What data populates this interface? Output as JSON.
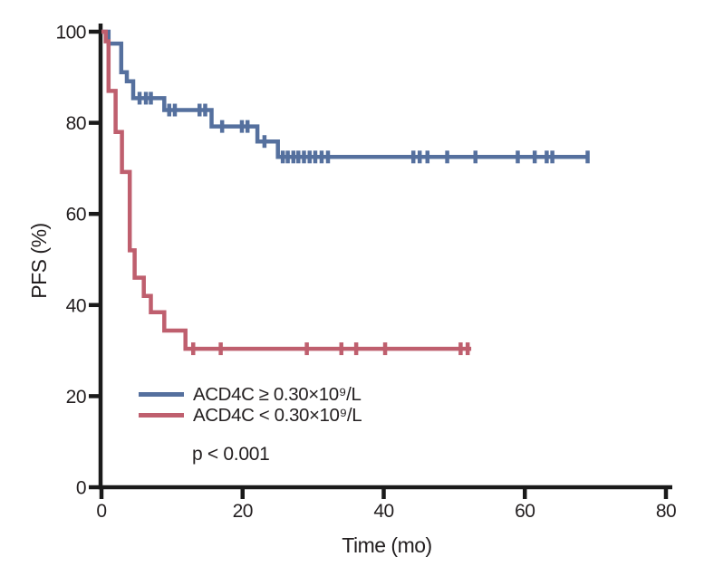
{
  "figure": {
    "background": "#ffffff",
    "text_color": "#231f20",
    "axis_color": "#1a1a1a"
  },
  "chart_data": {
    "type": "line",
    "subtype": "kaplan_meier_step",
    "title": "",
    "xlabel": "Time (mo)",
    "ylabel": "PFS (%)",
    "xlim": [
      0,
      80
    ],
    "ylim": [
      0,
      100
    ],
    "xticks": [
      0,
      20,
      40,
      60,
      80
    ],
    "yticks": [
      0,
      20,
      40,
      60,
      80,
      100
    ],
    "grid": false,
    "legend_position": "inside-lower-left",
    "annotation": "p < 0.001",
    "series": [
      {
        "name": "ACD4C ≥ 0.30×10⁹/L",
        "color": "#55709e",
        "steps": [
          [
            0,
            100
          ],
          [
            1.0,
            97.4
          ],
          [
            2.8,
            91.1
          ],
          [
            3.6,
            89.1
          ],
          [
            4.5,
            85.4
          ],
          [
            8.9,
            82.8
          ],
          [
            15.6,
            79.2
          ],
          [
            22.1,
            75.9
          ],
          [
            25.0,
            72.5
          ]
        ],
        "end_time": 69.1,
        "censors": [
          [
            5.4,
            85.4
          ],
          [
            6.3,
            85.4
          ],
          [
            7.0,
            85.4
          ],
          [
            9.6,
            82.8
          ],
          [
            10.4,
            82.8
          ],
          [
            13.9,
            82.8
          ],
          [
            14.7,
            82.8
          ],
          [
            17.1,
            79.2
          ],
          [
            19.9,
            79.2
          ],
          [
            20.7,
            79.2
          ],
          [
            23.1,
            75.9
          ],
          [
            25.7,
            72.5
          ],
          [
            26.4,
            72.5
          ],
          [
            27.2,
            72.5
          ],
          [
            27.9,
            72.5
          ],
          [
            28.7,
            72.5
          ],
          [
            29.5,
            72.5
          ],
          [
            30.3,
            72.5
          ],
          [
            31.2,
            72.5
          ],
          [
            32.1,
            72.5
          ],
          [
            44.2,
            72.5
          ],
          [
            45.1,
            72.5
          ],
          [
            46.2,
            72.5
          ],
          [
            49.0,
            72.5
          ],
          [
            53.0,
            72.5
          ],
          [
            59.0,
            72.5
          ],
          [
            61.4,
            72.5
          ],
          [
            63.1,
            72.5
          ],
          [
            63.9,
            72.5
          ],
          [
            68.9,
            72.5
          ]
        ]
      },
      {
        "name": "ACD4C < 0.30×10⁹/L",
        "color": "#bf5f6e",
        "steps": [
          [
            0,
            100
          ],
          [
            0.6,
            97.9
          ],
          [
            1.0,
            87.0
          ],
          [
            2.0,
            78.0
          ],
          [
            2.9,
            69.2
          ],
          [
            4.0,
            52.0
          ],
          [
            4.7,
            46.0
          ],
          [
            6.0,
            42.0
          ],
          [
            7.0,
            38.4
          ],
          [
            8.9,
            34.4
          ],
          [
            11.9,
            30.4
          ]
        ],
        "end_time": 52.4,
        "censors": [
          [
            13.0,
            30.4
          ],
          [
            16.9,
            30.4
          ],
          [
            29.1,
            30.4
          ],
          [
            34.0,
            30.4
          ],
          [
            36.1,
            30.4
          ],
          [
            40.2,
            30.4
          ],
          [
            50.9,
            30.4
          ],
          [
            51.9,
            30.4
          ]
        ]
      }
    ]
  }
}
